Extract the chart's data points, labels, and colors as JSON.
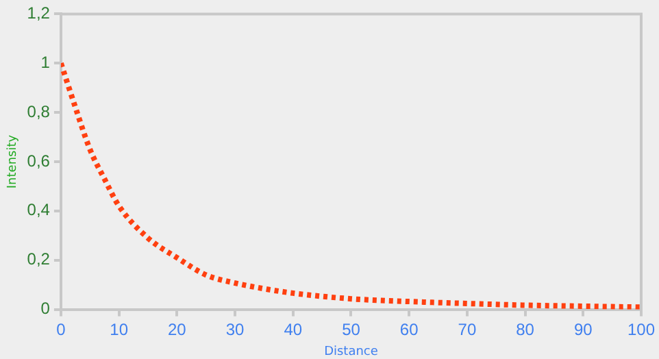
{
  "chart_data": {
    "type": "line",
    "xlabel": "Distance",
    "ylabel": "Intensity",
    "x": [
      0,
      2.5,
      5,
      7.5,
      10,
      15,
      20,
      25,
      30,
      35,
      40,
      50,
      60,
      70,
      80,
      90,
      100
    ],
    "series": [
      {
        "color": "#ff4010",
        "values": [
          1,
          0.82,
          0.65,
          0.53,
          0.42,
          0.29,
          0.21,
          0.14,
          0.107,
          0.084,
          0.066,
          0.043,
          0.032,
          0.024,
          0.017,
          0.013,
          0.009
        ]
      }
    ],
    "xlim": [
      0,
      100
    ],
    "xticks": [
      0,
      10,
      20,
      30,
      40,
      50,
      60,
      70,
      80,
      90,
      100
    ],
    "ylim": [
      0,
      1.2
    ],
    "yticks": [
      0,
      {
        "value": 0.2,
        "label": "0,2"
      },
      {
        "value": 0.4,
        "label": "0,4"
      },
      {
        "value": 0.6,
        "label": "0,6"
      },
      {
        "value": 0.8,
        "label": "0,8"
      },
      1,
      {
        "value": 1.2,
        "label": "1,2"
      }
    ],
    "grid": false,
    "legend": false,
    "marker": "none",
    "line_style": "dotted"
  }
}
